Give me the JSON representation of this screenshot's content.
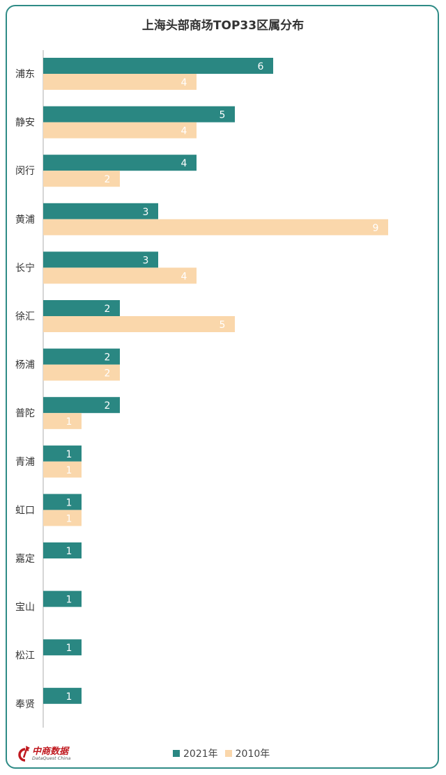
{
  "chart_data": {
    "type": "bar",
    "orientation": "horizontal",
    "title": "上海头部商场TOP33区属分布",
    "categories": [
      "浦东",
      "静安",
      "闵行",
      "黄浦",
      "长宁",
      "徐汇",
      "杨浦",
      "普陀",
      "青浦",
      "虹口",
      "嘉定",
      "宝山",
      "松江",
      "奉贤"
    ],
    "series": [
      {
        "name": "2021年",
        "color": "#2a8782",
        "values": [
          6,
          5,
          4,
          3,
          3,
          2,
          2,
          2,
          1,
          1,
          1,
          1,
          1,
          1
        ]
      },
      {
        "name": "2010年",
        "color": "#fad7ab",
        "values": [
          4,
          4,
          2,
          9,
          4,
          5,
          2,
          1,
          1,
          1,
          null,
          null,
          null,
          null
        ]
      }
    ],
    "xlim": [
      0,
      10
    ],
    "grid": false,
    "legend_position": "bottom"
  },
  "logo": {
    "cn": "中商数据",
    "en": "DataQuest China"
  }
}
